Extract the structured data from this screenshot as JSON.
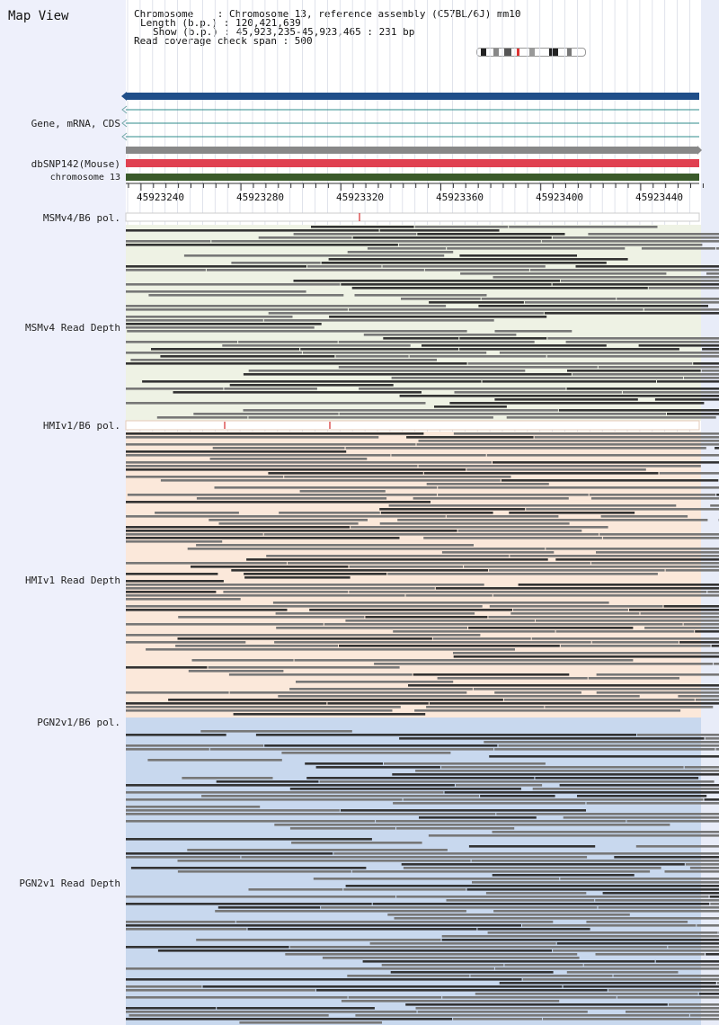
{
  "app": {
    "title": "Map View"
  },
  "info": {
    "chromosome_line": "Chromosome    : Chromosome 13, reference assembly (C57BL/6J) mm10",
    "length_line": "Length (b.p.) : 120,421,639",
    "show_line": "Show (b.p.) : 45,923,235-45,923,465 : 231 bp",
    "coverage_line": "Read coverage check span : 500"
  },
  "tracks": {
    "gene_label": "Gene, mRNA, CDS",
    "dbsnp_label": "dbSNP142(Mouse)",
    "chrom_label": "chromosome 13",
    "msm_pol_label": "MSMv4/B6 pol.",
    "msm_depth_label": "MSMv4 Read Depth",
    "hmi_pol_label": "HMIv1/B6 pol.",
    "hmi_depth_label": "HMIv1 Read Depth",
    "pgn_pol_label": "PGN2v1/B6 pol.",
    "pgn_depth_label": "PGN2v1 Read Depth"
  },
  "ruler": {
    "ticks": [
      "45923240",
      "45923280",
      "45923320",
      "45923360",
      "45923400",
      "45923440"
    ]
  },
  "colors": {
    "gene_bar": "#1f4e89",
    "transcript_line": "#2e8b8b",
    "snp_grey": "#888888",
    "snp_red": "#e04050",
    "chrom_green": "#3a5a2a",
    "msm_bg": "#eef2e4",
    "hmi_bg": "#fbe8da",
    "pgn_bg": "#c8d8ee",
    "read_dark": "#333333",
    "read_grey": "#777777"
  },
  "icons": {
    "gene_arrows": "chevron-left-icon",
    "snp_arrow": "chevron-right-icon"
  }
}
